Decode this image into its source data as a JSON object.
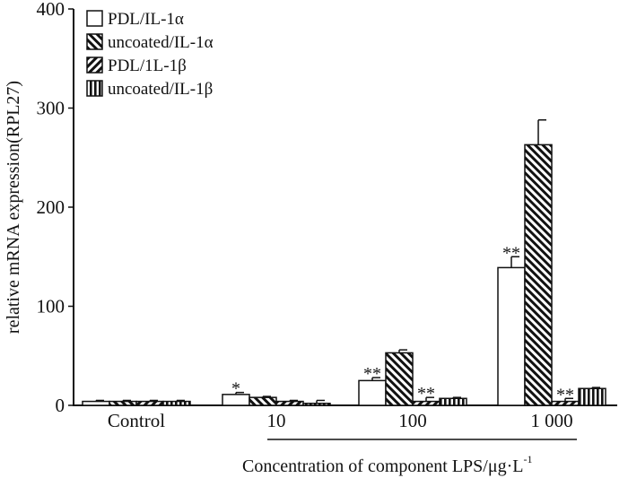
{
  "chart_data": {
    "type": "bar",
    "ylabel": "relative mRNA expression(RPL27)",
    "xlabel": "Concentration of component LPS/μg·L",
    "xlabel_sup": "-1",
    "ylim": [
      0,
      400
    ],
    "yticks": [
      "0",
      "100",
      "200",
      "300",
      "400"
    ],
    "categories": [
      "Control",
      "10",
      "100",
      "1 000"
    ],
    "grid": false,
    "legend_position": "top-left",
    "series": [
      {
        "name": "PDL/IL-1α",
        "pattern": "open",
        "values": [
          4,
          11,
          25,
          139
        ],
        "errors": [
          1,
          2,
          3,
          11
        ],
        "annotations": [
          "",
          "*",
          "**",
          "**"
        ]
      },
      {
        "name": "uncoated/IL-1α",
        "pattern": "diag-back",
        "values": [
          4,
          8,
          53,
          263
        ],
        "errors": [
          1,
          1,
          3,
          25
        ],
        "annotations": [
          "",
          "",
          "",
          ""
        ]
      },
      {
        "name": "PDL/1L-1β",
        "pattern": "diag-fwd",
        "values": [
          4,
          4,
          4,
          4
        ],
        "errors": [
          1,
          1,
          4,
          3
        ],
        "annotations": [
          "",
          "",
          "**",
          "**"
        ]
      },
      {
        "name": "uncoated/IL-1β",
        "pattern": "vertical",
        "values": [
          4,
          2,
          7,
          17
        ],
        "errors": [
          1,
          3,
          1,
          1
        ],
        "annotations": [
          "",
          "",
          "",
          ""
        ]
      }
    ],
    "colors": {
      "stroke": "#111111",
      "fill_open": "#ffffff"
    }
  }
}
